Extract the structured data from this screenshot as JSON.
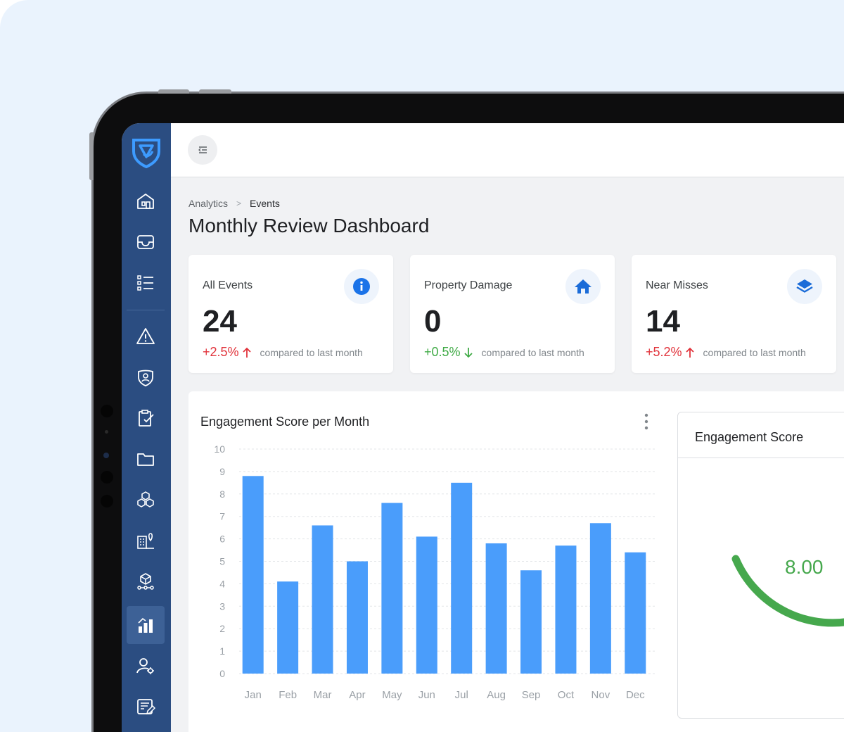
{
  "breadcrumb": {
    "parent": "Analytics",
    "current": "Events"
  },
  "page": {
    "title": "Monthly Review Dashboard"
  },
  "stats": [
    {
      "label": "All Events",
      "value": "24",
      "delta": "+2.5%",
      "trend": "up",
      "caption": "compared to last month",
      "icon": "info-icon"
    },
    {
      "label": "Property Damage",
      "value": "0",
      "delta": "+0.5%",
      "trend": "down",
      "caption": "compared to last month",
      "icon": "home-icon"
    },
    {
      "label": "Near Misses",
      "value": "14",
      "delta": "+5.2%",
      "trend": "up",
      "caption": "compared to last month",
      "icon": "layers-icon"
    }
  ],
  "engagement_score": {
    "title": "Engagement Score",
    "value": "8.00",
    "color": "#46a84d"
  },
  "sidebar": {
    "items": [
      "home-icon",
      "inbox-icon",
      "list-icon",
      "warning-icon",
      "shield-user-icon",
      "clipboard-check-icon",
      "folder-icon",
      "boxes-icon",
      "building-location-icon",
      "package-network-icon",
      "analytics-icon",
      "user-settings-icon",
      "report-edit-icon"
    ],
    "active": "analytics-icon"
  },
  "colors": {
    "accent": "#2b4d81",
    "bar": "#4a9dfb",
    "up": "#e1333b",
    "down": "#3faa45"
  },
  "chart_data": {
    "type": "bar",
    "title": "Engagement Score per Month",
    "categories": [
      "Jan",
      "Feb",
      "Mar",
      "Apr",
      "May",
      "Jun",
      "Jul",
      "Aug",
      "Sep",
      "Oct",
      "Nov",
      "Dec"
    ],
    "values": [
      8.8,
      4.1,
      6.6,
      5.0,
      7.6,
      6.1,
      8.5,
      5.8,
      4.6,
      5.7,
      6.7,
      5.4
    ],
    "yticks": [
      "0",
      "1",
      "2",
      "3",
      "4",
      "5",
      "6",
      "7",
      "8",
      "9",
      "10"
    ],
    "ylim": [
      0,
      10
    ],
    "grid": true,
    "xlabel": "",
    "ylabel": ""
  }
}
